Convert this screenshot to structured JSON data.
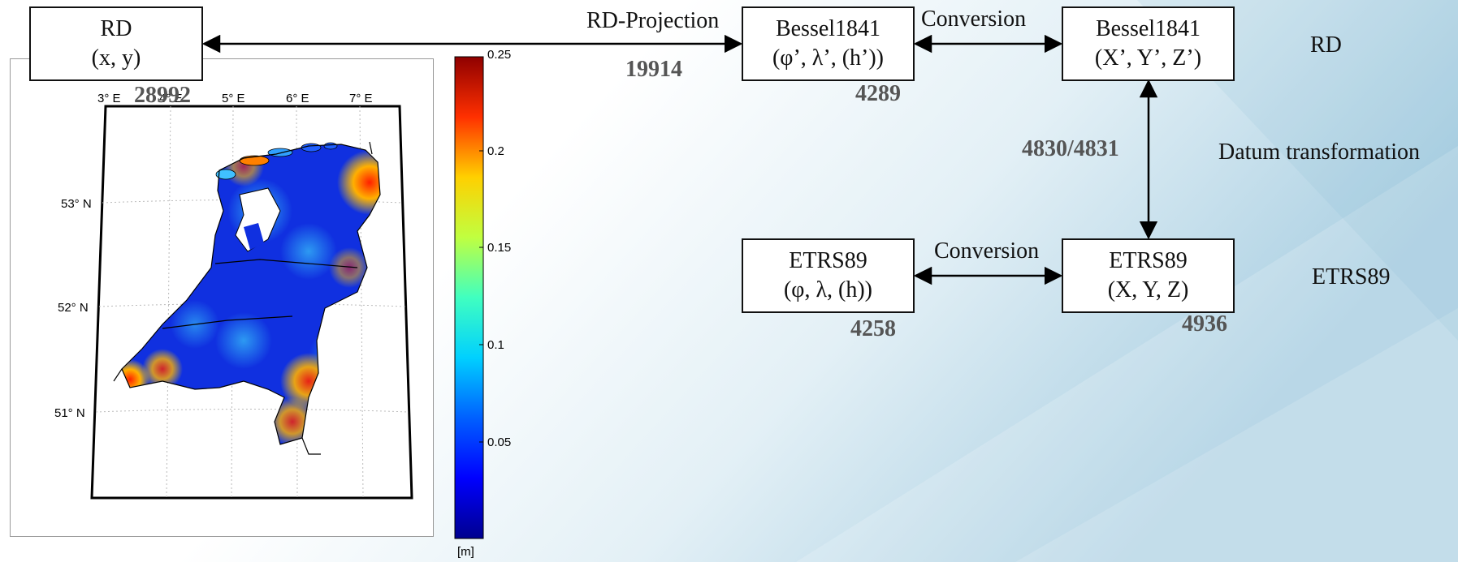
{
  "boxes": {
    "rd_xy": {
      "line1": "RD",
      "line2": "(x, y)"
    },
    "bessel_geographic": {
      "line1": "Bessel1841",
      "line2": "(φ’, λ’, (h’))"
    },
    "bessel_geocentric": {
      "line1": "Bessel1841",
      "line2": "(X’, Y’, Z’)"
    },
    "etrs89_geographic": {
      "line1": "ETRS89",
      "line2": "(φ, λ, (h))"
    },
    "etrs89_geocentric": {
      "line1": "ETRS89",
      "line2": "(X, Y, Z)"
    }
  },
  "edges": {
    "rd_projection": "RD-Projection",
    "conversion_top": "Conversion",
    "conversion_bottom": "Conversion",
    "datum_transformation": "Datum transformation"
  },
  "row_labels": {
    "rd": "RD",
    "etrs89": "ETRS89"
  },
  "codes": {
    "rd_xy": "28992",
    "rd_projection": "19914",
    "bessel_geographic": "4289",
    "datum_transformation": "4830/4831",
    "etrs89_geographic": "4258",
    "etrs89_geocentric": "4936"
  },
  "map": {
    "lon_ticks": [
      "3° E",
      "4° E",
      "5° E",
      "6° E",
      "7° E"
    ],
    "lat_ticks": [
      "53° N",
      "52° N",
      "51° N"
    ],
    "colorbar": {
      "ticks": [
        "0.25",
        "0.2",
        "0.15",
        "0.1",
        "0.05"
      ],
      "range": [
        0,
        0.25
      ],
      "unit": "[m]",
      "colormap": [
        "#00008f",
        "#0000ff",
        "#0080ff",
        "#00ffff",
        "#80ff80",
        "#ffff00",
        "#ff8000",
        "#ff0000",
        "#800000"
      ]
    }
  },
  "colors": {
    "box_border": "#111111",
    "code_text": "#555555",
    "background_accent": "#b4d6e6"
  }
}
